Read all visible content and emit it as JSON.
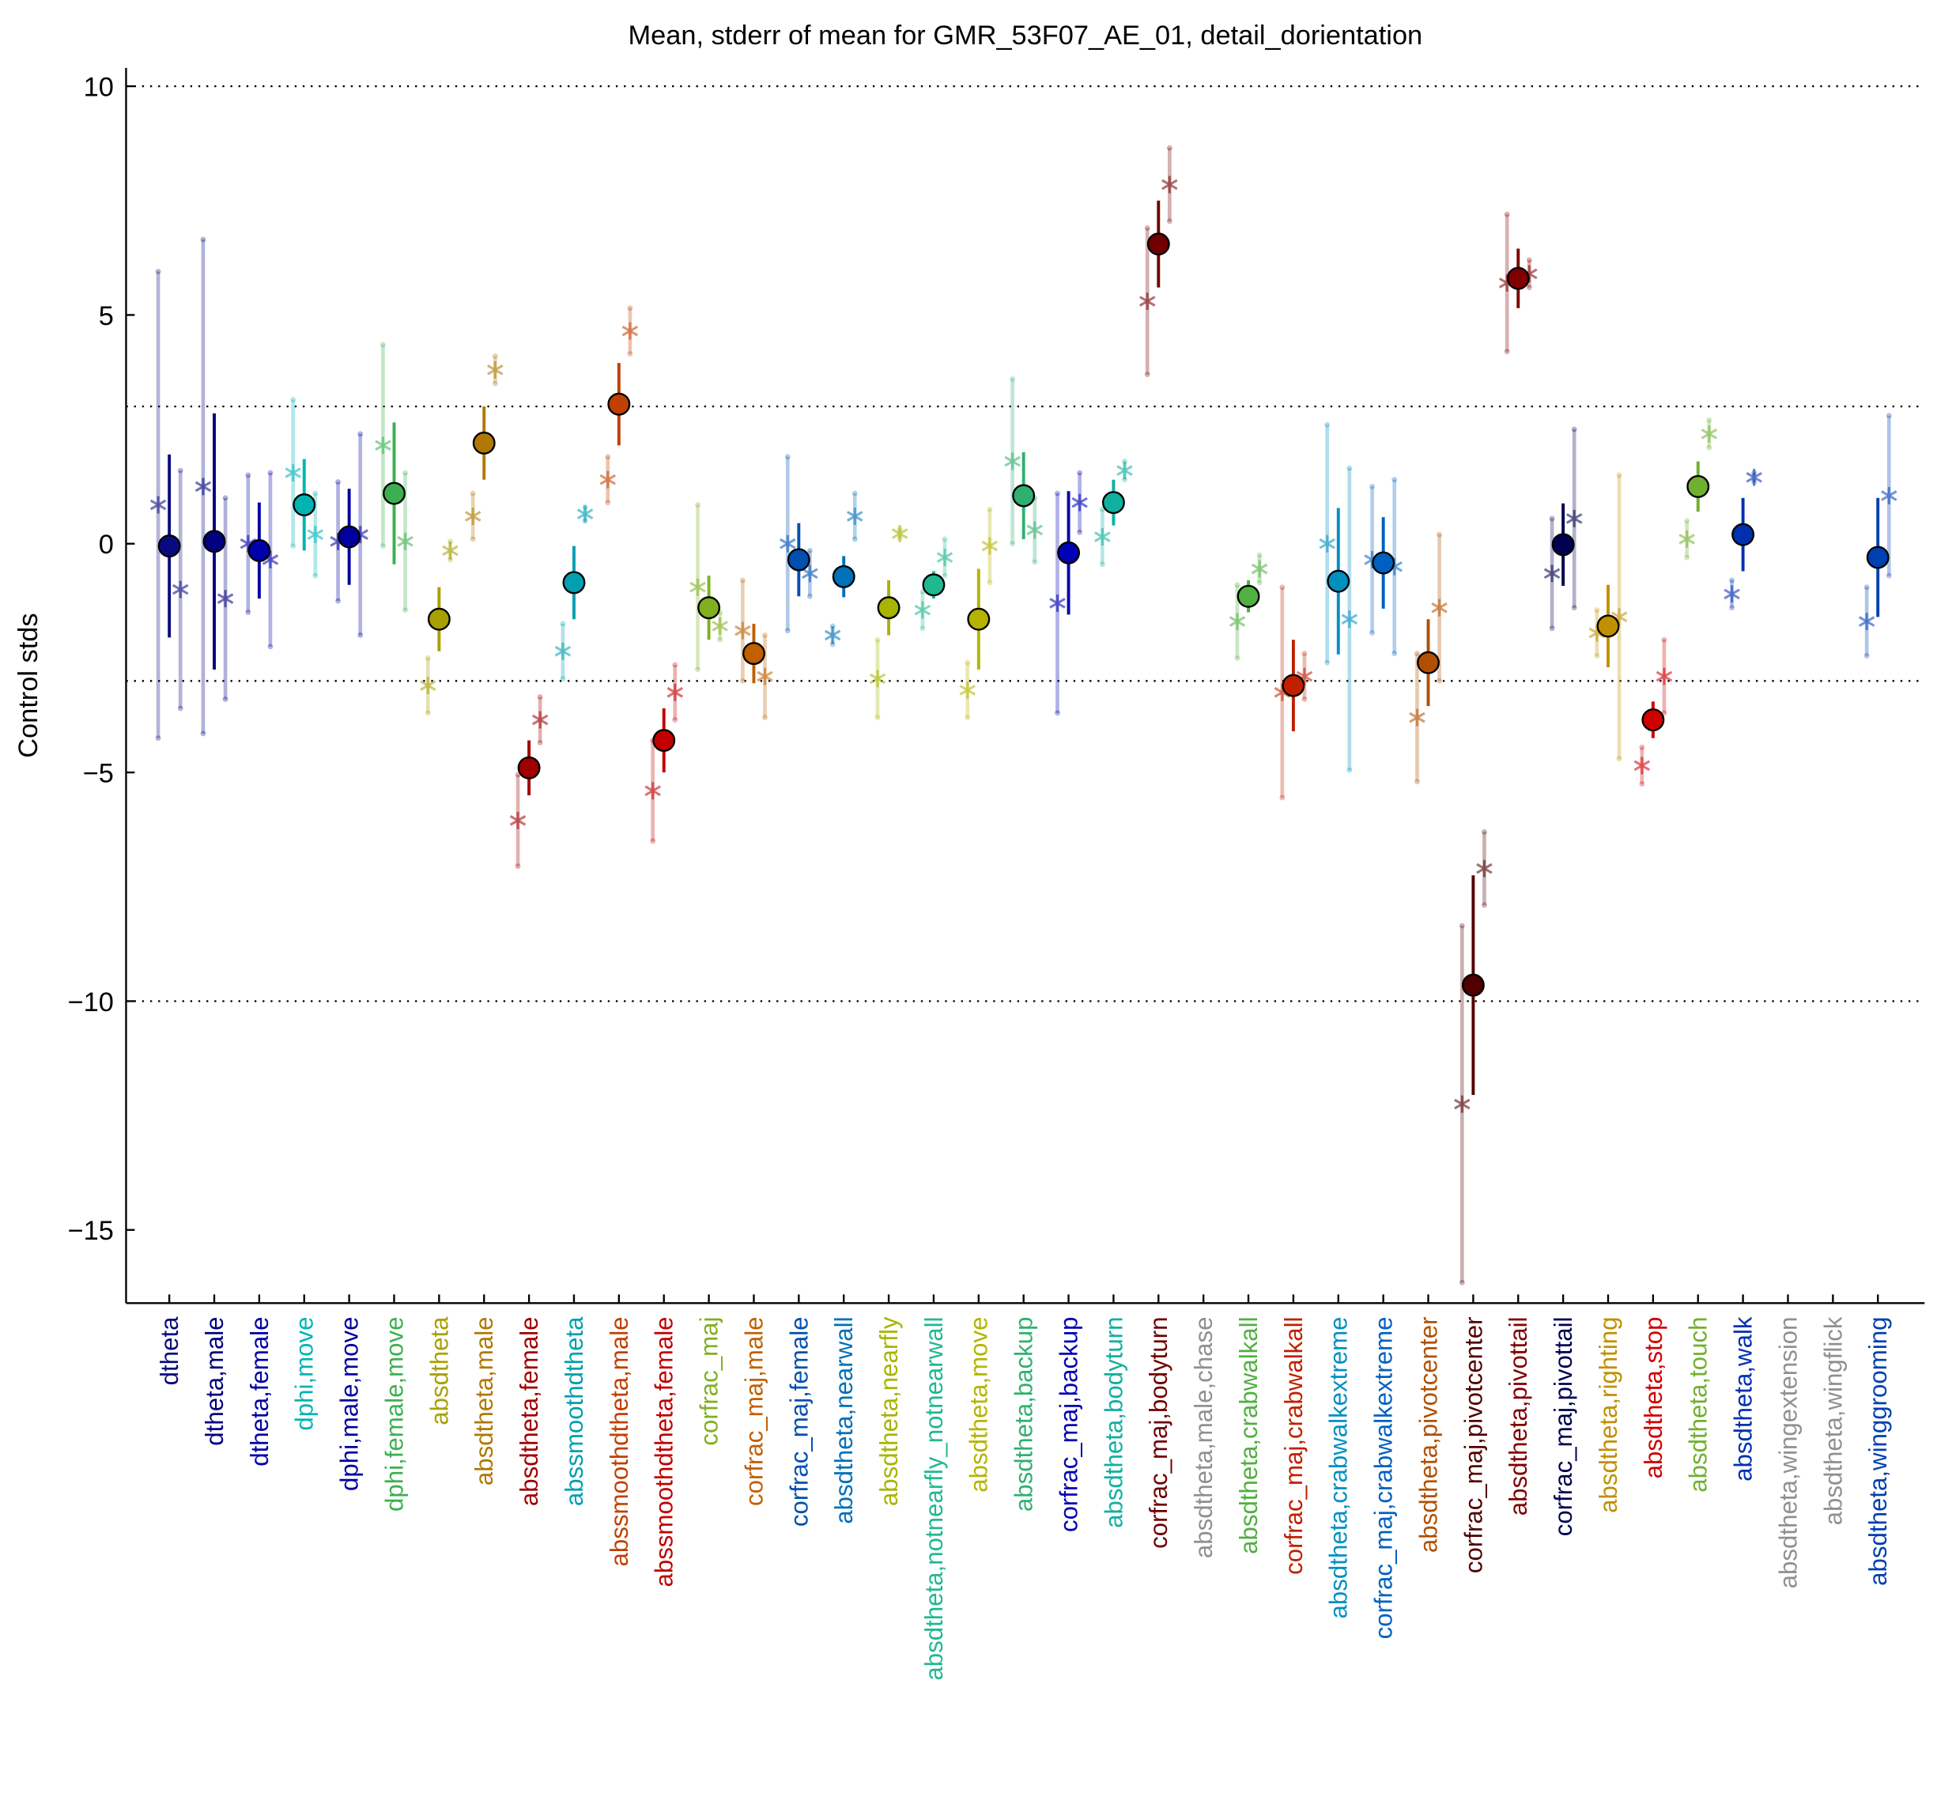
{
  "chart_data": {
    "type": "errorbar",
    "title": "Mean, stderr of mean for GMR_53F07_AE_01, detail_dorientation",
    "ylabel": "Control stds",
    "ylim": [
      -16.6,
      10.4
    ],
    "yticks": [
      10,
      5,
      0,
      {
        "value": -5,
        "label": "−5"
      },
      {
        "value": -10,
        "label": "−10"
      },
      {
        "value": -15,
        "label": "−15"
      }
    ],
    "reference_lines": [
      10,
      3,
      -3,
      -10
    ],
    "categories": [
      "dtheta",
      "dtheta,male",
      "dtheta,female",
      "dphi,move",
      "dphi,male,move",
      "dphi,female,move",
      "absdtheta",
      "absdtheta,male",
      "absdtheta,female",
      "abssmoothdtheta",
      "abssmoothdtheta,male",
      "abssmoothdtheta,female",
      "corfrac_maj",
      "corfrac_maj,male",
      "corfrac_maj,female",
      "absdtheta,nearwall",
      "absdtheta,nearfly",
      "absdtheta,notnearfly_notnearwall",
      "absdtheta,move",
      "absdtheta,backup",
      "corfrac_maj,backup",
      "absdtheta,bodyturn",
      "corfrac_maj,bodyturn",
      "absdtheta,male,chase",
      "absdtheta,crabwalkall",
      "corfrac_maj,crabwalkall",
      "absdtheta,crabwalkextreme",
      "corfrac_maj,crabwalkextreme",
      "absdtheta,pivotcenter",
      "corfrac_maj,pivotcenter",
      "absdtheta,pivottail",
      "corfrac_maj,pivottail",
      "absdtheta,righting",
      "absdtheta,stop",
      "absdtheta,touch",
      "absdtheta,walk",
      "absdtheta,wingextension",
      "absdtheta,wingflick",
      "absdtheta,winggrooming"
    ],
    "colors": [
      "#0a0a80",
      "#000080",
      "#0000a8",
      "#00b4b4",
      "#0000a0",
      "#3cb050",
      "#a8a000",
      "#b07800",
      "#a00000",
      "#00a0b0",
      "#c04000",
      "#c00000",
      "#80b020",
      "#c06000",
      "#0050b0",
      "#0070b8",
      "#a8b400",
      "#20b890",
      "#b4b400",
      "#30b070",
      "#0000b4",
      "#10b0a0",
      "#700000",
      "#909090",
      "#50b040",
      "#c02000",
      "#0090c0",
      "#0060c0",
      "#b05000",
      "#500000",
      "#800000",
      "#000050",
      "#c09000",
      "#d00000",
      "#70b030",
      "#0030b0",
      "#909090",
      "#909090",
      "#0040b0"
    ],
    "values": [
      -0.05,
      0.05,
      -0.15,
      0.85,
      0.15,
      1.1,
      -1.65,
      2.2,
      -4.9,
      -0.85,
      3.05,
      -4.3,
      -1.4,
      -2.4,
      -0.35,
      -0.72,
      -1.4,
      -0.9,
      -1.65,
      1.05,
      -0.2,
      0.9,
      6.55,
      null,
      -1.15,
      -3.1,
      -0.82,
      -0.42,
      -2.6,
      -9.65,
      5.8,
      -0.02,
      -1.8,
      -3.85,
      1.25,
      0.2,
      null,
      null,
      -0.3
    ],
    "errors": [
      2.0,
      2.8,
      1.05,
      1.0,
      1.05,
      1.55,
      0.7,
      0.8,
      0.6,
      0.8,
      0.9,
      0.7,
      0.7,
      0.65,
      0.8,
      0.45,
      0.6,
      0.3,
      1.1,
      0.95,
      1.35,
      0.5,
      0.95,
      null,
      0.35,
      1.0,
      1.6,
      1.0,
      0.95,
      2.4,
      0.65,
      0.9,
      0.9,
      0.4,
      0.55,
      0.8,
      null,
      null,
      1.3
    ],
    "male_values": [
      0.85,
      1.25,
      0,
      1.55,
      0.05,
      2.15,
      -3.1,
      0.6,
      -6.05,
      -2.35,
      1.4,
      -5.4,
      -0.95,
      -1.9,
      0,
      -2.0,
      -2.95,
      -1.45,
      -3.2,
      1.8,
      -1.3,
      0.15,
      5.3,
      null,
      -1.7,
      -3.25,
      0,
      -0.35,
      -3.8,
      -12.25,
      5.7,
      -0.65,
      -1.95,
      -4.85,
      0.1,
      -1.1,
      null,
      null,
      -1.7
    ],
    "male_errors": [
      5.1,
      5.4,
      1.5,
      1.6,
      1.3,
      2.2,
      0.6,
      0.5,
      1.0,
      0.6,
      0.5,
      1.1,
      1.8,
      1.1,
      1.9,
      0.2,
      0.85,
      0.4,
      0.6,
      1.8,
      2.4,
      0.6,
      1.6,
      null,
      0.8,
      2.3,
      2.6,
      1.6,
      1.4,
      3.9,
      1.5,
      1.2,
      0.5,
      0.4,
      0.4,
      0.3,
      null,
      null,
      0.75
    ],
    "female_values": [
      -1.0,
      -1.2,
      -0.35,
      0.2,
      0.2,
      0.05,
      -0.15,
      3.8,
      -3.85,
      0.65,
      4.65,
      -3.25,
      -1.8,
      -2.9,
      -0.65,
      0.6,
      0.22,
      -0.3,
      -0.05,
      0.3,
      0.9,
      1.6,
      7.85,
      null,
      -0.55,
      -2.9,
      -1.65,
      -0.5,
      -1.4,
      -7.1,
      5.9,
      0.55,
      -1.6,
      -2.9,
      2.4,
      1.45,
      null,
      null,
      1.05
    ],
    "female_errors": [
      2.6,
      2.2,
      1.9,
      0.9,
      2.2,
      1.5,
      0.2,
      0.3,
      0.5,
      0.15,
      0.5,
      0.6,
      0.3,
      0.9,
      0.5,
      0.5,
      0.1,
      0.4,
      0.8,
      0.7,
      0.65,
      0.2,
      0.8,
      null,
      0.3,
      0.5,
      3.3,
      1.9,
      1.6,
      0.8,
      0.3,
      1.95,
      3.1,
      0.8,
      0.3,
      0.1,
      null,
      null,
      1.75
    ]
  }
}
